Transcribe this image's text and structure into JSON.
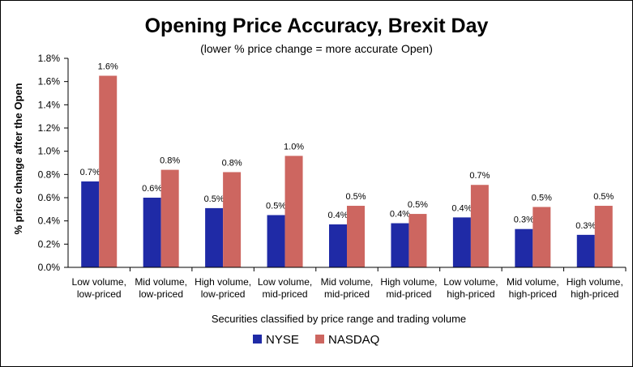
{
  "chart_data": {
    "type": "bar",
    "title": "Opening Price Accuracy, Brexit Day",
    "subtitle": "(lower % price change = more accurate Open)",
    "xlabel": "Securities classified by price range and trading volume",
    "ylabel": "% price change after the Open",
    "ylim": [
      0,
      0.018
    ],
    "yticks": [
      "0.0%",
      "0.2%",
      "0.4%",
      "0.6%",
      "0.8%",
      "1.0%",
      "1.2%",
      "1.4%",
      "1.6%",
      "1.8%"
    ],
    "categories": [
      [
        "Low volume,",
        "low-priced"
      ],
      [
        "Mid volume,",
        "low-priced"
      ],
      [
        "High volume,",
        "low-priced"
      ],
      [
        "Low volume,",
        "mid-priced"
      ],
      [
        "Mid volume,",
        "mid-priced"
      ],
      [
        "High volume,",
        "mid-priced"
      ],
      [
        "Low volume,",
        "high-priced"
      ],
      [
        "Mid volume,",
        "high-priced"
      ],
      [
        "High volume,",
        "high-priced"
      ]
    ],
    "series": [
      {
        "name": "NYSE",
        "color": "#1f2aa6",
        "values": [
          0.0074,
          0.006,
          0.0051,
          0.0045,
          0.0037,
          0.0038,
          0.0043,
          0.0033,
          0.0028
        ],
        "labels": [
          "0.7%",
          "0.6%",
          "0.5%",
          "0.5%",
          "0.4%",
          "0.4%",
          "0.4%",
          "0.3%",
          "0.3%"
        ]
      },
      {
        "name": "NASDAQ",
        "color": "#cd6660",
        "values": [
          0.0165,
          0.0084,
          0.0082,
          0.0096,
          0.0053,
          0.0046,
          0.0071,
          0.0052,
          0.0053
        ],
        "labels": [
          "1.6%",
          "0.8%",
          "0.8%",
          "1.0%",
          "0.5%",
          "0.5%",
          "0.7%",
          "0.5%",
          "0.5%"
        ]
      }
    ],
    "grid": false,
    "legend": "bottom"
  }
}
